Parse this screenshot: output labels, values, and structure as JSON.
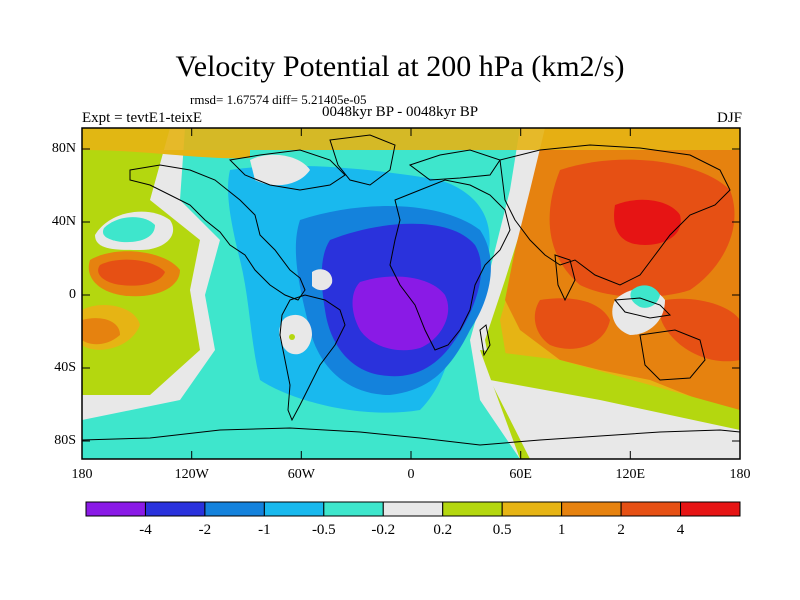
{
  "title": "Velocity Potential at 200 hPa (km2/s)",
  "stats_line": "rmsd= 1.67574 diff= 5.21405e-05",
  "expt_label": "Expt = tevtE1-teixE",
  "period_label": "0048kyr BP - 0048kyr BP",
  "season_label": "DJF",
  "lat_labels": [
    "80N",
    "40N",
    "0",
    "40S",
    "80S"
  ],
  "lon_labels": [
    "180",
    "120W",
    "60W",
    "0",
    "60E",
    "120E",
    "180"
  ],
  "colorbar": {
    "labels": [
      "-4",
      "-2",
      "-1",
      "-0.5",
      "-0.2",
      "0.2",
      "0.5",
      "1",
      "2",
      "4"
    ],
    "colors": [
      "#8a1ae6",
      "#2a32dc",
      "#1482dc",
      "#19b9ee",
      "#3ee6cc",
      "#e8e8e8",
      "#b4d70f",
      "#e6b414",
      "#e6820f",
      "#e65014",
      "#e61414"
    ]
  }
}
